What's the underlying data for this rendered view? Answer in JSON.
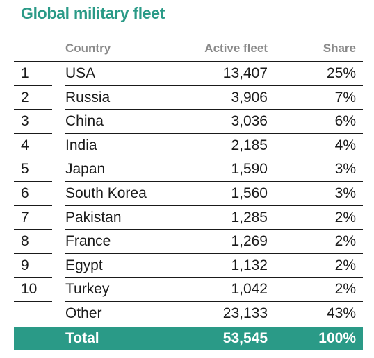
{
  "title": "Global military fleet",
  "chart_data": {
    "type": "table",
    "title": "Global military fleet",
    "columns": [
      "",
      "Country",
      "Active fleet",
      "Share"
    ],
    "rows": [
      {
        "rank": "1",
        "country": "USA",
        "fleet": "13,407",
        "share": "25%"
      },
      {
        "rank": "2",
        "country": "Russia",
        "fleet": "3,906",
        "share": "7%"
      },
      {
        "rank": "3",
        "country": "China",
        "fleet": "3,036",
        "share": "6%"
      },
      {
        "rank": "4",
        "country": "India",
        "fleet": "2,185",
        "share": "4%"
      },
      {
        "rank": "5",
        "country": "Japan",
        "fleet": "1,590",
        "share": "3%"
      },
      {
        "rank": "6",
        "country": "South Korea",
        "fleet": "1,560",
        "share": "3%"
      },
      {
        "rank": "7",
        "country": "Pakistan",
        "fleet": "1,285",
        "share": "2%"
      },
      {
        "rank": "8",
        "country": "France",
        "fleet": "1,269",
        "share": "2%"
      },
      {
        "rank": "9",
        "country": "Egypt",
        "fleet": "1,132",
        "share": "2%"
      },
      {
        "rank": "10",
        "country": "Turkey",
        "fleet": "1,042",
        "share": "2%"
      },
      {
        "rank": "",
        "country": "Other",
        "fleet": "23,133",
        "share": "43%"
      }
    ],
    "total": {
      "label": "Total",
      "fleet": "53,545",
      "share": "100%"
    }
  },
  "colors": {
    "accent": "#2a9a87",
    "header_text": "#8a8a8a",
    "text": "#1a1a1a"
  }
}
